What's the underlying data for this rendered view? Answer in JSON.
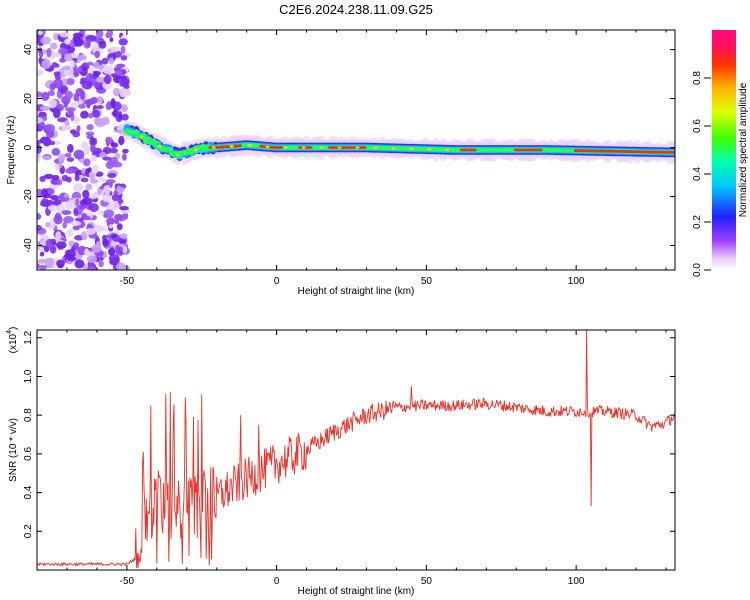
{
  "title": "C2E6.2024.238.11.09.G25",
  "chart_data": [
    {
      "type": "heatmap",
      "xlabel": "Height of straight line (km)",
      "ylabel": "Frequency (Hz)",
      "xlim": [
        -80,
        133
      ],
      "ylim": [
        -50,
        48
      ],
      "xticks": [
        -50,
        0,
        50,
        100
      ],
      "yticks": [
        -40,
        -20,
        0,
        20,
        40
      ],
      "ridge": [
        {
          "x": -50,
          "y": 7
        },
        {
          "x": -47,
          "y": 6
        },
        {
          "x": -43,
          "y": 3
        },
        {
          "x": -40,
          "y": 1
        },
        {
          "x": -36,
          "y": -1
        },
        {
          "x": -33,
          "y": -3
        },
        {
          "x": -30,
          "y": -2
        },
        {
          "x": -27,
          "y": -1
        },
        {
          "x": -24,
          "y": 0
        },
        {
          "x": -20,
          "y": 0
        },
        {
          "x": -10,
          "y": 1
        },
        {
          "x": 0,
          "y": 0
        },
        {
          "x": 10,
          "y": 0
        },
        {
          "x": 30,
          "y": 0
        },
        {
          "x": 60,
          "y": -1
        },
        {
          "x": 90,
          "y": -1
        },
        {
          "x": 133,
          "y": -2
        }
      ],
      "colorbar": {
        "label": "Normalized spectral amplitude",
        "ticks": [
          0.0,
          0.2,
          0.4,
          0.6,
          0.8
        ],
        "range": [
          0,
          1
        ]
      },
      "grid": false
    },
    {
      "type": "line",
      "xlabel": "Height of straight line (km)",
      "ylabel": "SNR (10 * v/v)",
      "multiplier": "(x10",
      "multiplier_exp": "4",
      "xlim": [
        -80,
        133
      ],
      "ylim": [
        0.0,
        1.24
      ],
      "xticks": [
        -50,
        0,
        50,
        100
      ],
      "yticks": [
        0.2,
        0.4,
        0.6,
        0.8,
        1.0,
        1.2
      ],
      "color": "#e8322a",
      "trend": [
        {
          "x": -80,
          "y": 0.03
        },
        {
          "x": -50,
          "y": 0.03
        },
        {
          "x": -47,
          "y": 0.06
        },
        {
          "x": -44,
          "y": 0.25
        },
        {
          "x": -40,
          "y": 0.35
        },
        {
          "x": -30,
          "y": 0.32
        },
        {
          "x": -20,
          "y": 0.38
        },
        {
          "x": -10,
          "y": 0.47
        },
        {
          "x": 0,
          "y": 0.55
        },
        {
          "x": 10,
          "y": 0.62
        },
        {
          "x": 20,
          "y": 0.72
        },
        {
          "x": 30,
          "y": 0.8
        },
        {
          "x": 40,
          "y": 0.84
        },
        {
          "x": 50,
          "y": 0.85
        },
        {
          "x": 60,
          "y": 0.85
        },
        {
          "x": 70,
          "y": 0.86
        },
        {
          "x": 80,
          "y": 0.84
        },
        {
          "x": 90,
          "y": 0.82
        },
        {
          "x": 100,
          "y": 0.82
        },
        {
          "x": 110,
          "y": 0.82
        },
        {
          "x": 120,
          "y": 0.8
        },
        {
          "x": 125,
          "y": 0.74
        },
        {
          "x": 130,
          "y": 0.76
        },
        {
          "x": 133,
          "y": 0.8
        }
      ],
      "peaks": [
        {
          "x": -42,
          "y": 0.85
        },
        {
          "x": -37,
          "y": 0.91
        },
        {
          "x": -12,
          "y": 0.8
        },
        {
          "x": -6,
          "y": 0.75
        },
        {
          "x": 45,
          "y": 0.95
        },
        {
          "x": 103.5,
          "y": 1.24
        },
        {
          "x": 105,
          "y": 0.33
        }
      ]
    }
  ]
}
